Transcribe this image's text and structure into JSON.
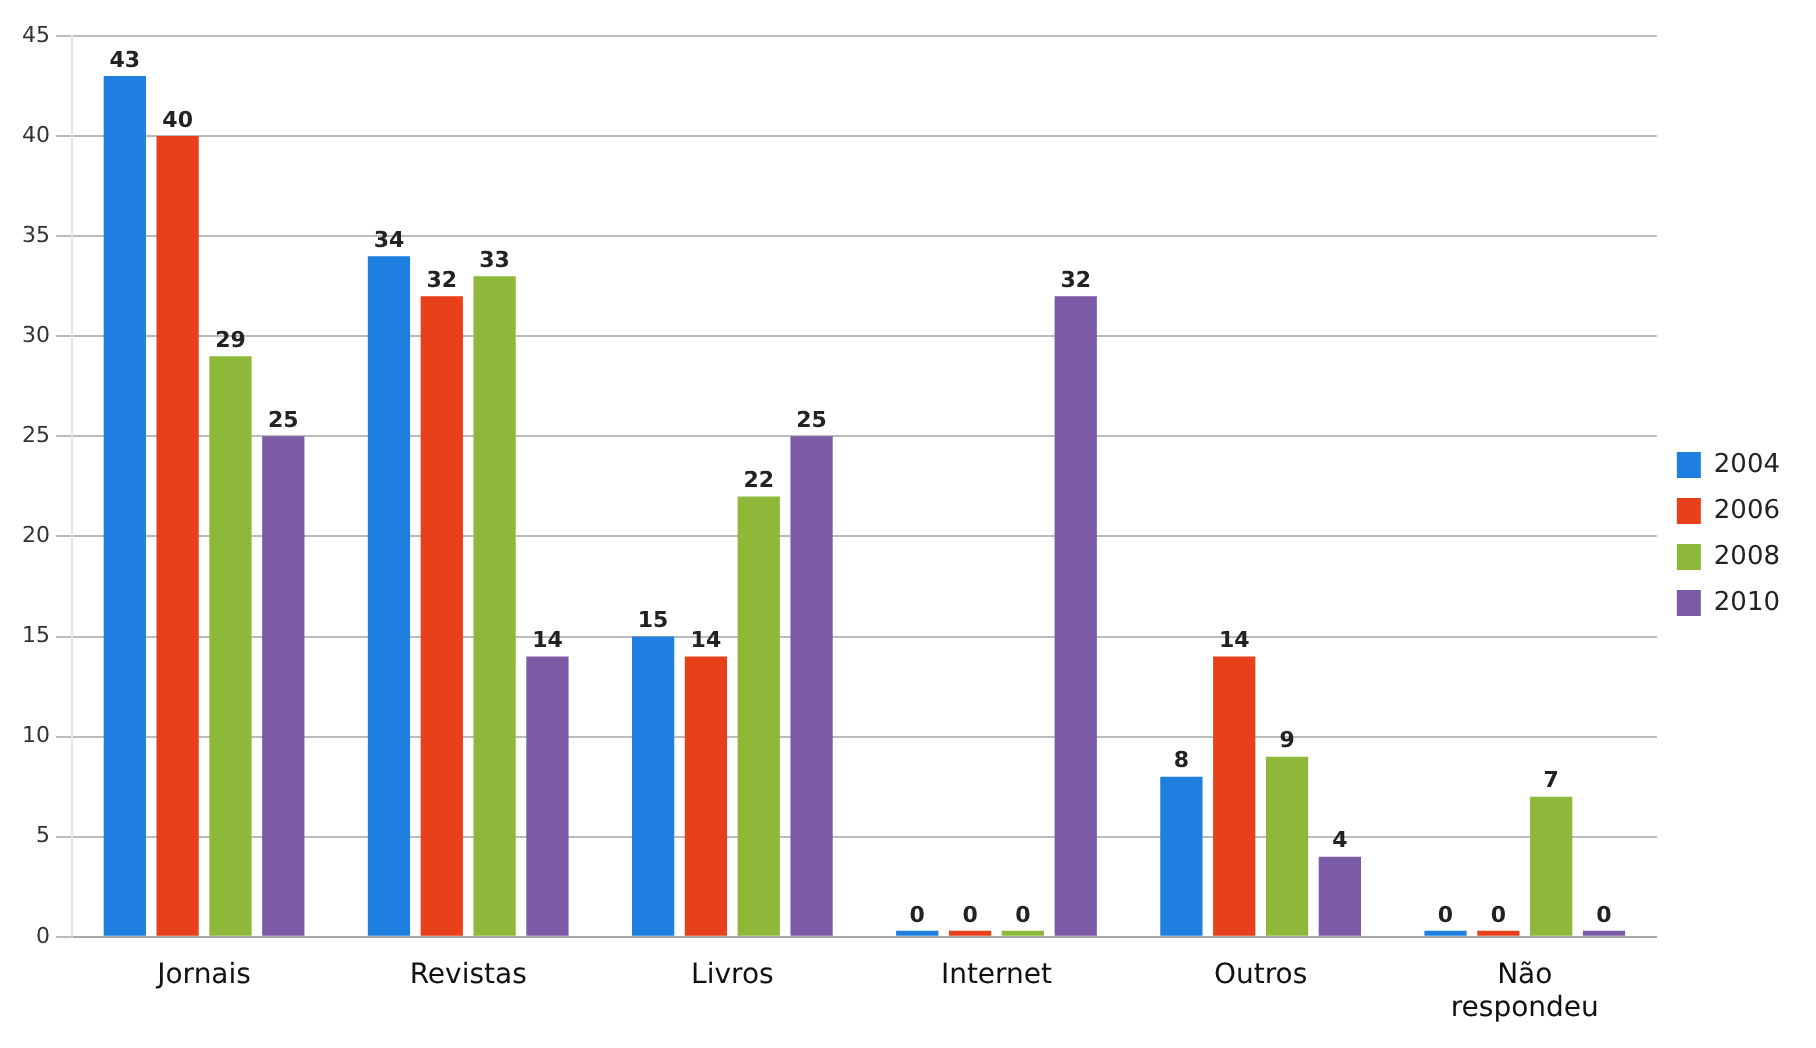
{
  "chart_data": {
    "type": "bar",
    "categories": [
      "Jornais",
      "Revistas",
      "Livros",
      "Internet",
      "Outros",
      "Não\nrespondeu"
    ],
    "series": [
      {
        "name": "2004",
        "color": "#1f7fe0",
        "values": [
          43,
          34,
          15,
          0,
          8,
          0
        ]
      },
      {
        "name": "2006",
        "color": "#e8401a",
        "values": [
          40,
          32,
          14,
          0,
          14,
          0
        ]
      },
      {
        "name": "2008",
        "color": "#8db83a",
        "values": [
          29,
          33,
          22,
          0,
          9,
          7
        ]
      },
      {
        "name": "2010",
        "color": "#7b5aa6",
        "values": [
          25,
          14,
          25,
          32,
          4,
          0
        ]
      }
    ],
    "ylim": [
      0,
      45
    ],
    "yticks": [
      0,
      5,
      10,
      15,
      20,
      25,
      30,
      35,
      40,
      45
    ],
    "grid": "y",
    "legend": "right",
    "data_labels": true
  }
}
